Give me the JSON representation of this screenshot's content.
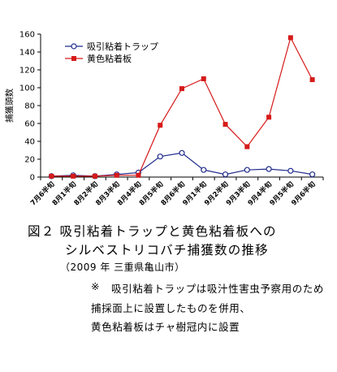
{
  "chart_data": {
    "type": "line",
    "ylabel": "捕獲頭数",
    "ylim": [
      0,
      160
    ],
    "yticks": [
      "0",
      "20",
      "40",
      "60",
      "80",
      "100",
      "120",
      "140",
      "160"
    ],
    "categories": [
      "7月6半旬",
      "8月1半旬",
      "8月2半旬",
      "8月3半旬",
      "8月4半旬",
      "8月5半旬",
      "8月6半旬",
      "9月1半旬",
      "9月2半旬",
      "9月3半旬",
      "9月4半旬",
      "9月5半旬",
      "9月6半旬"
    ],
    "series": [
      {
        "name": "吸引粘着トラップ",
        "color": "#1f2a8c",
        "marker": "circle",
        "values": [
          1,
          2,
          1,
          3,
          5,
          23,
          27,
          8,
          3,
          8,
          9,
          7,
          3
        ]
      },
      {
        "name": "黄色粘着板",
        "color": "#d61a1a",
        "marker": "square",
        "values": [
          1,
          1,
          1,
          2,
          2,
          58,
          99,
          110,
          59,
          34,
          67,
          156,
          109
        ]
      }
    ],
    "legend": "top-left",
    "grid": false
  },
  "caption": {
    "title": "図２ 吸引粘着トラップと黄色粘着板への",
    "subtitle": "シルベストリコバチ捕獲数の推移",
    "location": "（2009 年 三重県亀山市）",
    "note_mark": "※",
    "note_line1": "吸引粘着トラップは吸汁性害虫予察用のため",
    "note_line2": "捕採面上に設置したものを併用、",
    "note_line3": "黄色粘着板はチャ樹冠内に設置"
  }
}
